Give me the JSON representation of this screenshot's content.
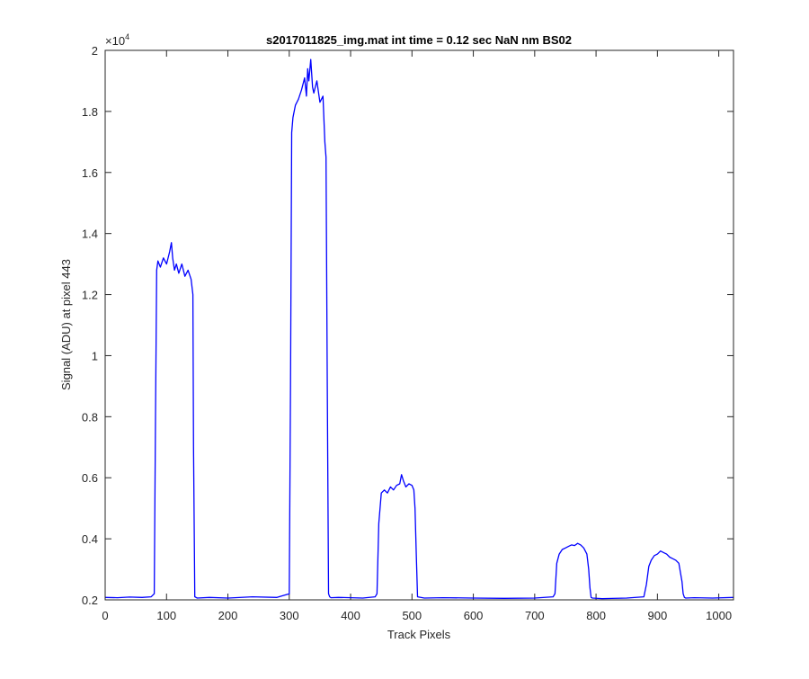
{
  "chart_data": {
    "type": "line",
    "title": "s2017011825_img.mat int time = 0.12 sec  NaN nm BS02",
    "xlabel": "Track Pixels",
    "ylabel": "Signal (ADU) at pixel 443",
    "exponent_base": "×10",
    "exponent_power": "4",
    "xlim": [
      0,
      1024
    ],
    "ylim": [
      2000,
      20000
    ],
    "xticks": [
      0,
      100,
      200,
      300,
      400,
      500,
      600,
      700,
      800,
      900,
      1000
    ],
    "xtick_labels": [
      "0",
      "100",
      "200",
      "300",
      "400",
      "500",
      "600",
      "700",
      "800",
      "900",
      "1000"
    ],
    "yticks": [
      2000,
      4000,
      6000,
      8000,
      10000,
      12000,
      14000,
      16000,
      18000,
      20000
    ],
    "ytick_labels": [
      "0.2",
      "0.4",
      "0.6",
      "0.8",
      "1",
      "1.2",
      "1.4",
      "1.6",
      "1.8",
      "2"
    ],
    "grid": false,
    "line_color": "#0000ff",
    "series": [
      {
        "x": [
          0,
          20,
          40,
          60,
          75,
          80,
          82,
          84,
          86,
          90,
          95,
          100,
          105,
          108,
          110,
          113,
          116,
          120,
          125,
          130,
          135,
          140,
          143,
          144,
          146,
          150,
          170,
          200,
          240,
          280,
          300,
          302,
          304,
          306,
          310,
          315,
          320,
          325,
          328,
          330,
          332,
          335,
          338,
          340,
          345,
          350,
          355,
          358,
          360,
          362,
          364,
          366,
          368,
          380,
          400,
          420,
          440,
          443,
          446,
          450,
          455,
          460,
          465,
          470,
          475,
          480,
          483,
          486,
          490,
          495,
          500,
          503,
          505,
          507,
          509,
          520,
          550,
          600,
          650,
          700,
          730,
          733,
          736,
          740,
          745,
          750,
          755,
          760,
          765,
          770,
          775,
          780,
          785,
          788,
          790,
          792,
          794,
          810,
          850,
          878,
          882,
          886,
          890,
          895,
          900,
          905,
          910,
          915,
          920,
          925,
          930,
          935,
          940,
          942,
          944,
          946,
          960,
          990,
          1024
        ],
        "y": [
          2080,
          2070,
          2090,
          2080,
          2100,
          2200,
          8000,
          12800,
          13100,
          12900,
          13200,
          13000,
          13400,
          13700,
          13200,
          12800,
          13000,
          12700,
          13000,
          12600,
          12800,
          12500,
          12000,
          7000,
          2100,
          2060,
          2080,
          2060,
          2100,
          2080,
          2200,
          9000,
          17300,
          17800,
          18200,
          18400,
          18700,
          19100,
          18500,
          19400,
          19000,
          19700,
          18800,
          18600,
          19000,
          18300,
          18500,
          17000,
          16500,
          9000,
          2200,
          2100,
          2070,
          2080,
          2070,
          2060,
          2100,
          2200,
          4500,
          5500,
          5600,
          5500,
          5700,
          5600,
          5750,
          5800,
          6100,
          5900,
          5700,
          5800,
          5750,
          5600,
          5000,
          3500,
          2100,
          2060,
          2070,
          2060,
          2050,
          2060,
          2100,
          2200,
          3200,
          3500,
          3650,
          3700,
          3750,
          3800,
          3780,
          3850,
          3800,
          3700,
          3500,
          3000,
          2400,
          2080,
          2060,
          2040,
          2060,
          2100,
          2500,
          3100,
          3300,
          3450,
          3500,
          3600,
          3550,
          3500,
          3400,
          3350,
          3300,
          3200,
          2600,
          2200,
          2080,
          2060,
          2070,
          2060,
          2080
        ]
      }
    ]
  }
}
